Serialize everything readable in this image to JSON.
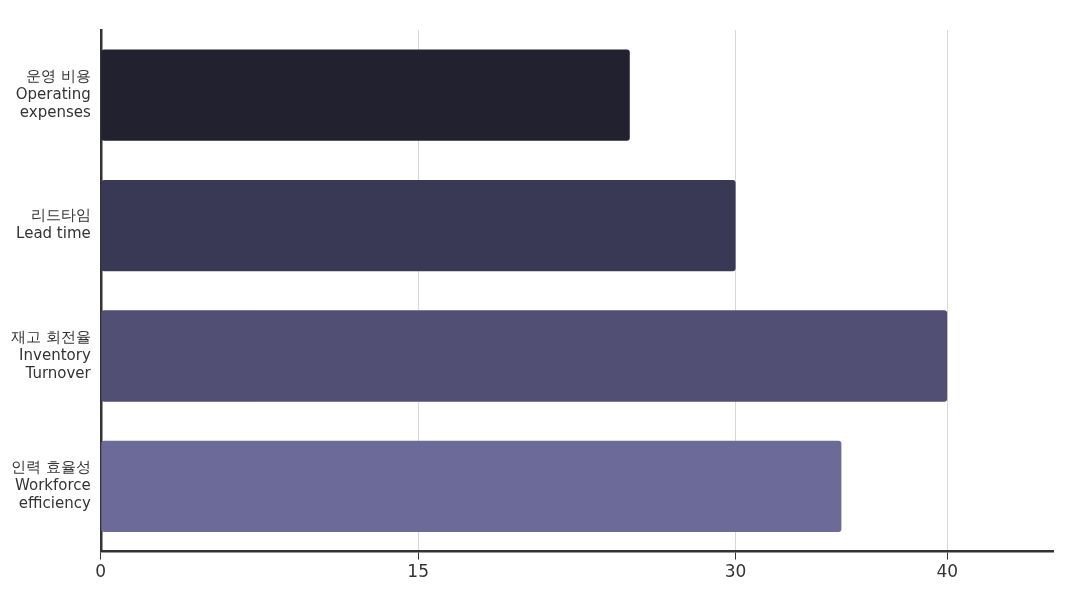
{
  "chart_data": {
    "type": "bar",
    "orientation": "horizontal",
    "categories": [
      "운영 비용\nOperating\nexpenses",
      "리드타임\nLead time",
      "재고 회전율\nInventory\nTurnover",
      "인력 효율성\nWorkforce\nefficiency"
    ],
    "values": [
      25,
      30,
      40,
      35
    ],
    "colors": [
      "#22212f",
      "#3a3955",
      "#524f74",
      "#6c6a98"
    ],
    "xlim": [
      0,
      45
    ],
    "xticks": [
      0,
      15,
      30,
      40
    ],
    "grid": "x"
  }
}
